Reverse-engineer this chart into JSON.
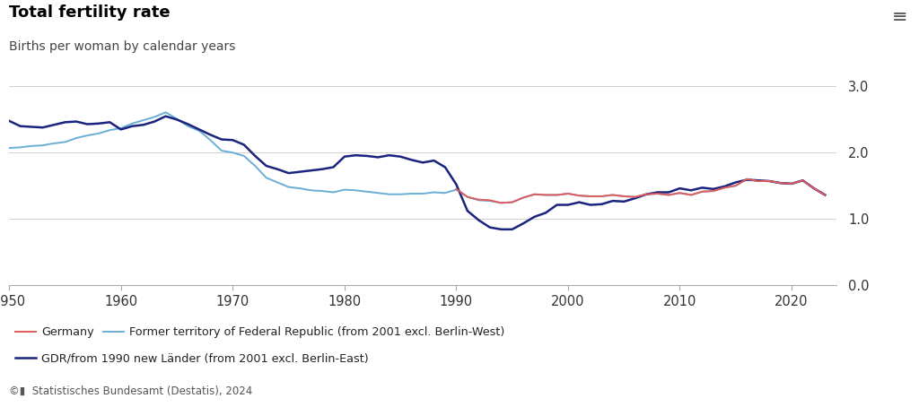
{
  "title": "Total fertility rate",
  "subtitle": "Births per woman by calendar years",
  "footer": "©▮  Statistisches Bundesamt (Destatis), 2024",
  "ylim": [
    0.0,
    3.2
  ],
  "yticks": [
    0.0,
    1.0,
    2.0,
    3.0
  ],
  "xlim": [
    1950,
    2024
  ],
  "xticks": [
    1950,
    1960,
    1970,
    1980,
    1990,
    2000,
    2010,
    2020
  ],
  "line_colors": {
    "germany": "#e05c5c",
    "federal": "#6aaed6",
    "gdr": "#1a237e"
  },
  "legend_row1": [
    {
      "label": "Germany",
      "color": "#e05c5c"
    },
    {
      "label": "Former territory of Federal Republic (from 2001 excl. Berlin-West)",
      "color": "#6aaed6"
    }
  ],
  "legend_row2": [
    {
      "label": "GDR/from 1990 new Länder (from 2001 excl. Berlin-East)",
      "color": "#1a237e"
    }
  ],
  "germany_years": [
    1990,
    1991,
    1992,
    1993,
    1994,
    1995,
    1996,
    1997,
    1998,
    1999,
    2000,
    2001,
    2002,
    2003,
    2004,
    2005,
    2006,
    2007,
    2008,
    2009,
    2010,
    2011,
    2012,
    2013,
    2014,
    2015,
    2016,
    2017,
    2018,
    2019,
    2020,
    2021,
    2022,
    2023
  ],
  "germany_values": [
    1.45,
    1.33,
    1.29,
    1.28,
    1.24,
    1.25,
    1.32,
    1.37,
    1.36,
    1.36,
    1.38,
    1.35,
    1.34,
    1.34,
    1.36,
    1.34,
    1.33,
    1.37,
    1.38,
    1.36,
    1.39,
    1.36,
    1.41,
    1.42,
    1.47,
    1.5,
    1.6,
    1.57,
    1.57,
    1.54,
    1.53,
    1.58,
    1.46,
    1.36
  ],
  "federal_years": [
    1950,
    1951,
    1952,
    1953,
    1954,
    1955,
    1956,
    1957,
    1958,
    1959,
    1960,
    1961,
    1962,
    1963,
    1964,
    1965,
    1966,
    1967,
    1968,
    1969,
    1970,
    1971,
    1972,
    1973,
    1974,
    1975,
    1976,
    1977,
    1978,
    1979,
    1980,
    1981,
    1982,
    1983,
    1984,
    1985,
    1986,
    1987,
    1988,
    1989,
    1990,
    1991,
    1992,
    1993,
    1994,
    1995,
    1996,
    1997,
    1998,
    1999,
    2000,
    2001,
    2002,
    2003,
    2004,
    2005,
    2006,
    2007,
    2008,
    2009,
    2010,
    2011,
    2012,
    2013,
    2014,
    2015,
    2016,
    2017,
    2018,
    2019,
    2020,
    2021,
    2022,
    2023
  ],
  "federal_values": [
    2.07,
    2.08,
    2.1,
    2.11,
    2.14,
    2.16,
    2.22,
    2.26,
    2.29,
    2.34,
    2.37,
    2.44,
    2.49,
    2.54,
    2.61,
    2.51,
    2.4,
    2.33,
    2.19,
    2.03,
    2.0,
    1.95,
    1.8,
    1.62,
    1.55,
    1.48,
    1.46,
    1.43,
    1.42,
    1.4,
    1.44,
    1.43,
    1.41,
    1.39,
    1.37,
    1.37,
    1.38,
    1.38,
    1.4,
    1.39,
    1.44,
    1.33,
    1.28,
    1.27,
    1.24,
    1.25,
    1.32,
    1.37,
    1.36,
    1.36,
    1.38,
    1.35,
    1.34,
    1.34,
    1.36,
    1.34,
    1.33,
    1.37,
    1.38,
    1.36,
    1.39,
    1.36,
    1.41,
    1.42,
    1.47,
    1.5,
    1.6,
    1.57,
    1.57,
    1.54,
    1.53,
    1.58,
    1.46,
    1.36
  ],
  "gdr_years": [
    1950,
    1951,
    1952,
    1953,
    1954,
    1955,
    1956,
    1957,
    1958,
    1959,
    1960,
    1961,
    1962,
    1963,
    1964,
    1965,
    1966,
    1967,
    1968,
    1969,
    1970,
    1971,
    1972,
    1973,
    1974,
    1975,
    1976,
    1977,
    1978,
    1979,
    1980,
    1981,
    1982,
    1983,
    1984,
    1985,
    1986,
    1987,
    1988,
    1989,
    1990,
    1991,
    1992,
    1993,
    1994,
    1995,
    1996,
    1997,
    1998,
    1999,
    2000,
    2001,
    2002,
    2003,
    2004,
    2005,
    2006,
    2007,
    2008,
    2009,
    2010,
    2011,
    2012,
    2013,
    2014,
    2015,
    2016,
    2017,
    2018,
    2019,
    2020,
    2021,
    2022,
    2023
  ],
  "gdr_values": [
    2.48,
    2.4,
    2.39,
    2.38,
    2.42,
    2.46,
    2.47,
    2.43,
    2.44,
    2.46,
    2.35,
    2.4,
    2.42,
    2.47,
    2.55,
    2.5,
    2.43,
    2.35,
    2.27,
    2.2,
    2.19,
    2.12,
    1.95,
    1.8,
    1.75,
    1.69,
    1.71,
    1.73,
    1.75,
    1.78,
    1.94,
    1.96,
    1.95,
    1.93,
    1.96,
    1.94,
    1.89,
    1.85,
    1.88,
    1.78,
    1.52,
    1.12,
    0.98,
    0.87,
    0.84,
    0.84,
    0.93,
    1.03,
    1.09,
    1.21,
    1.21,
    1.25,
    1.21,
    1.22,
    1.27,
    1.26,
    1.31,
    1.37,
    1.4,
    1.4,
    1.46,
    1.43,
    1.47,
    1.45,
    1.49,
    1.55,
    1.59,
    1.58,
    1.57,
    1.54,
    1.53,
    1.58,
    1.46,
    1.36
  ]
}
